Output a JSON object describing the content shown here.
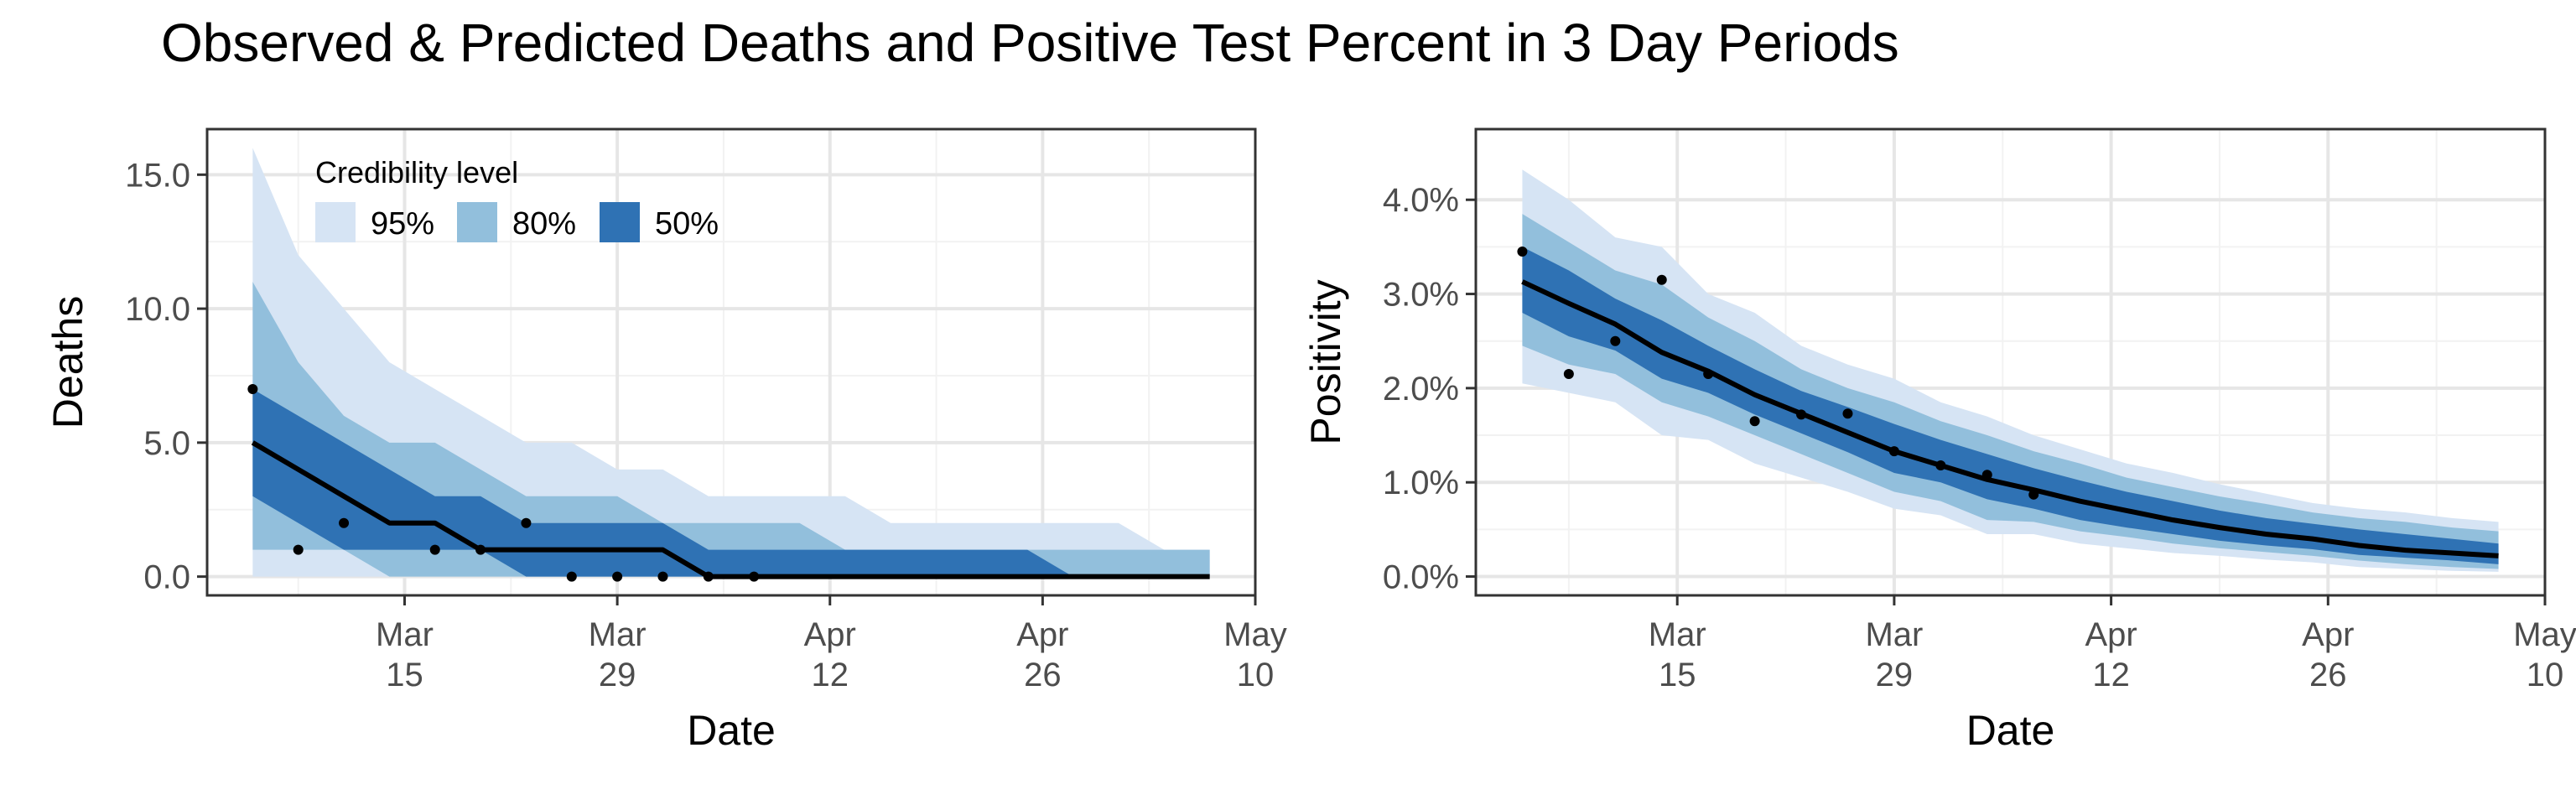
{
  "title": "Observed & Predicted Deaths and Positive Test Percent in 3 Day Periods",
  "colors": {
    "band95": "#d6e4f4",
    "band80": "#92bfdc",
    "band50": "#2f72b4",
    "median": "#000000",
    "observed": "#000000",
    "grid_major": "#e6e6e6",
    "grid_minor": "#f2f2f2",
    "panel_border": "#333333"
  },
  "legend": {
    "title": "Credibility level",
    "items": [
      {
        "label": "95%",
        "color": "#d6e4f4"
      },
      {
        "label": "80%",
        "color": "#92bfdc"
      },
      {
        "label": "50%",
        "color": "#2f72b4"
      }
    ]
  },
  "chart_data": [
    {
      "type": "area",
      "panel": "deaths",
      "xlabel": "Date",
      "ylabel": "Deaths",
      "xlim": [
        "2021-03-02",
        "2021-05-10"
      ],
      "ylim": [
        -0.7,
        16.7
      ],
      "x_ticks": [
        {
          "date": "2021-03-15",
          "line1": "Mar",
          "line2": "15"
        },
        {
          "date": "2021-03-29",
          "line1": "Mar",
          "line2": "29"
        },
        {
          "date": "2021-04-12",
          "line1": "Apr",
          "line2": "12"
        },
        {
          "date": "2021-04-26",
          "line1": "Apr",
          "line2": "26"
        },
        {
          "date": "2021-05-10",
          "line1": "May",
          "line2": "10"
        }
      ],
      "y_ticks": [
        {
          "value": 0,
          "label": "0.0"
        },
        {
          "value": 5,
          "label": "5.0"
        },
        {
          "value": 10,
          "label": "10.0"
        },
        {
          "value": 15,
          "label": "15.0"
        }
      ],
      "legend_position": "top-left",
      "bands": {
        "x": [
          "2021-03-05",
          "2021-03-08",
          "2021-03-11",
          "2021-03-14",
          "2021-03-17",
          "2021-03-20",
          "2021-03-23",
          "2021-03-26",
          "2021-03-29",
          "2021-04-01",
          "2021-04-04",
          "2021-04-07",
          "2021-04-10",
          "2021-04-13",
          "2021-04-16",
          "2021-04-19",
          "2021-04-22",
          "2021-04-25",
          "2021-04-28",
          "2021-05-01",
          "2021-05-04",
          "2021-05-07"
        ],
        "lo95": [
          0,
          0,
          0,
          0,
          0,
          0,
          0,
          0,
          0,
          0,
          0,
          0,
          0,
          0,
          0,
          0,
          0,
          0,
          0,
          0,
          0,
          0
        ],
        "hi95": [
          16,
          12,
          10,
          8,
          7,
          6,
          5,
          5,
          4,
          4,
          3,
          3,
          3,
          3,
          2,
          2,
          2,
          2,
          2,
          2,
          1,
          1
        ],
        "lo80": [
          1,
          1,
          1,
          0,
          0,
          0,
          0,
          0,
          0,
          0,
          0,
          0,
          0,
          0,
          0,
          0,
          0,
          0,
          0,
          0,
          0,
          0
        ],
        "hi80": [
          11,
          8,
          6,
          5,
          5,
          4,
          3,
          3,
          3,
          2,
          2,
          2,
          2,
          1,
          1,
          1,
          1,
          1,
          1,
          1,
          1,
          1
        ],
        "lo50": [
          3,
          2,
          1,
          1,
          1,
          1,
          0,
          0,
          0,
          0,
          0,
          0,
          0,
          0,
          0,
          0,
          0,
          0,
          0,
          0,
          0,
          0
        ],
        "hi50": [
          7,
          6,
          5,
          4,
          3,
          3,
          2,
          2,
          2,
          2,
          1,
          1,
          1,
          1,
          1,
          1,
          1,
          1,
          0,
          0,
          0,
          0
        ],
        "median": [
          5,
          4,
          3,
          2,
          2,
          1,
          1,
          1,
          1,
          1,
          0,
          0,
          0,
          0,
          0,
          0,
          0,
          0,
          0,
          0,
          0,
          0
        ]
      },
      "observed": [
        {
          "x": "2021-03-05",
          "y": 7
        },
        {
          "x": "2021-03-08",
          "y": 1
        },
        {
          "x": "2021-03-11",
          "y": 2
        },
        {
          "x": "2021-03-17",
          "y": 1
        },
        {
          "x": "2021-03-20",
          "y": 1
        },
        {
          "x": "2021-03-23",
          "y": 2
        },
        {
          "x": "2021-03-26",
          "y": 0
        },
        {
          "x": "2021-03-29",
          "y": 0
        },
        {
          "x": "2021-04-01",
          "y": 0
        },
        {
          "x": "2021-04-04",
          "y": 0
        },
        {
          "x": "2021-04-07",
          "y": 0
        }
      ]
    },
    {
      "type": "area",
      "panel": "positivity",
      "xlabel": "Date",
      "ylabel": "Positivity",
      "xlim": [
        "2021-03-02",
        "2021-05-10"
      ],
      "ylim": [
        -0.2,
        4.75
      ],
      "x_ticks": [
        {
          "date": "2021-03-15",
          "line1": "Mar",
          "line2": "15"
        },
        {
          "date": "2021-03-29",
          "line1": "Mar",
          "line2": "29"
        },
        {
          "date": "2021-04-12",
          "line1": "Apr",
          "line2": "12"
        },
        {
          "date": "2021-04-26",
          "line1": "Apr",
          "line2": "26"
        },
        {
          "date": "2021-05-10",
          "line1": "May",
          "line2": "10"
        }
      ],
      "y_ticks": [
        {
          "value": 0,
          "label": "0.0%"
        },
        {
          "value": 1,
          "label": "1.0%"
        },
        {
          "value": 2,
          "label": "2.0%"
        },
        {
          "value": 3,
          "label": "3.0%"
        },
        {
          "value": 4,
          "label": "4.0%"
        }
      ],
      "bands": {
        "x": [
          "2021-03-05",
          "2021-03-08",
          "2021-03-11",
          "2021-03-14",
          "2021-03-17",
          "2021-03-20",
          "2021-03-23",
          "2021-03-26",
          "2021-03-29",
          "2021-04-01",
          "2021-04-04",
          "2021-04-07",
          "2021-04-10",
          "2021-04-13",
          "2021-04-16",
          "2021-04-19",
          "2021-04-22",
          "2021-04-25",
          "2021-04-28",
          "2021-05-01",
          "2021-05-04",
          "2021-05-07"
        ],
        "lo95": [
          2.05,
          1.95,
          1.85,
          1.5,
          1.45,
          1.2,
          1.05,
          0.9,
          0.72,
          0.65,
          0.45,
          0.45,
          0.35,
          0.3,
          0.25,
          0.22,
          0.18,
          0.15,
          0.1,
          0.08,
          0.06,
          0.05
        ],
        "hi95": [
          4.32,
          4.0,
          3.6,
          3.5,
          3.0,
          2.8,
          2.45,
          2.25,
          2.1,
          1.85,
          1.7,
          1.5,
          1.35,
          1.2,
          1.1,
          0.98,
          0.88,
          0.78,
          0.72,
          0.68,
          0.62,
          0.58
        ],
        "lo80": [
          2.45,
          2.25,
          2.15,
          1.85,
          1.7,
          1.5,
          1.3,
          1.1,
          0.9,
          0.8,
          0.6,
          0.58,
          0.48,
          0.42,
          0.35,
          0.3,
          0.26,
          0.22,
          0.17,
          0.13,
          0.1,
          0.08
        ],
        "hi80": [
          3.85,
          3.55,
          3.25,
          3.1,
          2.75,
          2.5,
          2.2,
          2.0,
          1.85,
          1.65,
          1.5,
          1.33,
          1.2,
          1.05,
          0.95,
          0.85,
          0.77,
          0.68,
          0.62,
          0.58,
          0.52,
          0.48
        ],
        "lo50": [
          2.8,
          2.55,
          2.4,
          2.1,
          1.95,
          1.72,
          1.52,
          1.32,
          1.1,
          1.0,
          0.82,
          0.72,
          0.6,
          0.52,
          0.45,
          0.38,
          0.33,
          0.29,
          0.23,
          0.2,
          0.17,
          0.13
        ],
        "hi50": [
          3.5,
          3.25,
          2.95,
          2.72,
          2.45,
          2.2,
          1.97,
          1.8,
          1.62,
          1.45,
          1.3,
          1.15,
          1.02,
          0.9,
          0.8,
          0.7,
          0.62,
          0.56,
          0.5,
          0.45,
          0.4,
          0.35
        ],
        "median": [
          3.13,
          2.9,
          2.68,
          2.38,
          2.18,
          1.93,
          1.73,
          1.53,
          1.33,
          1.18,
          1.03,
          0.92,
          0.8,
          0.7,
          0.6,
          0.52,
          0.45,
          0.4,
          0.33,
          0.28,
          0.25,
          0.22
        ]
      },
      "observed": [
        {
          "x": "2021-03-05",
          "y": 3.45
        },
        {
          "x": "2021-03-08",
          "y": 2.15
        },
        {
          "x": "2021-03-11",
          "y": 2.5
        },
        {
          "x": "2021-03-14",
          "y": 3.15
        },
        {
          "x": "2021-03-17",
          "y": 2.15
        },
        {
          "x": "2021-03-20",
          "y": 1.65
        },
        {
          "x": "2021-03-23",
          "y": 1.72
        },
        {
          "x": "2021-03-26",
          "y": 1.73
        },
        {
          "x": "2021-03-29",
          "y": 1.33
        },
        {
          "x": "2021-04-01",
          "y": 1.18
        },
        {
          "x": "2021-04-04",
          "y": 1.08
        },
        {
          "x": "2021-04-07",
          "y": 0.87
        }
      ]
    }
  ]
}
